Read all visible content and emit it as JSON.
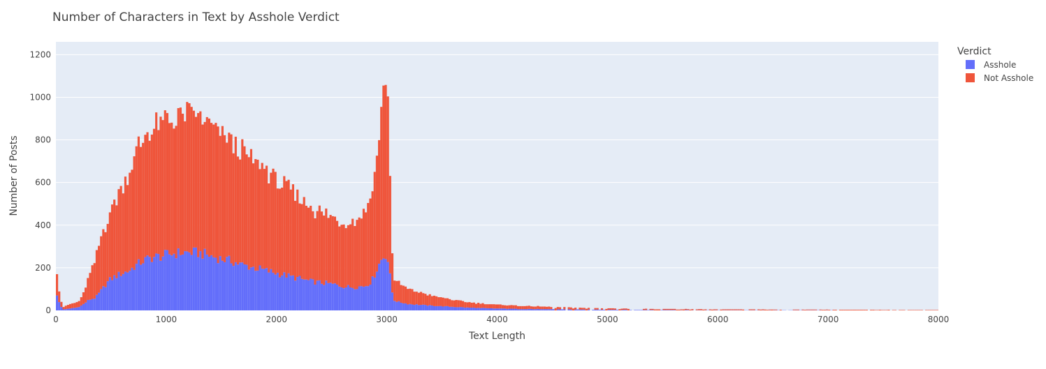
{
  "chart_data": {
    "type": "bar",
    "barmode": "stack",
    "title": "Number of Characters in Text by Asshole Verdict",
    "xlabel": "Text Length",
    "ylabel": "Number of Posts",
    "xlim": [
      0,
      8000
    ],
    "ylim": [
      0,
      1260
    ],
    "x_ticks": [
      0,
      1000,
      2000,
      3000,
      4000,
      5000,
      6000,
      7000,
      8000
    ],
    "x_tick_labels": [
      "0",
      "1000",
      "2000",
      "3000",
      "4000",
      "5000",
      "6000",
      "7000",
      "8000"
    ],
    "y_ticks": [
      0,
      200,
      400,
      600,
      800,
      1000,
      1200
    ],
    "y_tick_labels": [
      "0",
      "200",
      "400",
      "600",
      "800",
      "1000",
      "1200"
    ],
    "grid": true,
    "legend": {
      "title": "Verdict",
      "placement": "top-right"
    },
    "bin_width": 20,
    "series": [
      {
        "name": "Asshole",
        "color": "#636efa",
        "points": [
          [
            0,
            70
          ],
          [
            60,
            5
          ],
          [
            120,
            8
          ],
          [
            200,
            15
          ],
          [
            240,
            25
          ],
          [
            300,
            50
          ],
          [
            360,
            60
          ],
          [
            420,
            100
          ],
          [
            480,
            140
          ],
          [
            540,
            160
          ],
          [
            600,
            175
          ],
          [
            660,
            185
          ],
          [
            720,
            210
          ],
          [
            800,
            235
          ],
          [
            880,
            250
          ],
          [
            960,
            255
          ],
          [
            1040,
            265
          ],
          [
            1120,
            270
          ],
          [
            1200,
            272
          ],
          [
            1280,
            270
          ],
          [
            1360,
            262
          ],
          [
            1440,
            250
          ],
          [
            1520,
            240
          ],
          [
            1600,
            230
          ],
          [
            1680,
            215
          ],
          [
            1760,
            205
          ],
          [
            1840,
            195
          ],
          [
            1920,
            185
          ],
          [
            2000,
            175
          ],
          [
            2080,
            165
          ],
          [
            2160,
            155
          ],
          [
            2240,
            145
          ],
          [
            2320,
            135
          ],
          [
            2400,
            130
          ],
          [
            2480,
            125
          ],
          [
            2560,
            118
          ],
          [
            2640,
            110
          ],
          [
            2720,
            110
          ],
          [
            2800,
            115
          ],
          [
            2860,
            135
          ],
          [
            2900,
            180
          ],
          [
            2940,
            230
          ],
          [
            2980,
            260
          ],
          [
            3000,
            265
          ],
          [
            3020,
            200
          ],
          [
            3040,
            120
          ],
          [
            3060,
            50
          ],
          [
            3100,
            40
          ],
          [
            3200,
            30
          ],
          [
            3300,
            26
          ],
          [
            3400,
            22
          ],
          [
            3500,
            20
          ],
          [
            3600,
            17
          ],
          [
            3700,
            14
          ],
          [
            3800,
            12
          ],
          [
            3900,
            10
          ],
          [
            4000,
            9
          ],
          [
            4200,
            7
          ],
          [
            4400,
            6
          ],
          [
            4600,
            5
          ],
          [
            4800,
            4
          ],
          [
            5000,
            3
          ],
          [
            5400,
            2
          ],
          [
            6000,
            1
          ],
          [
            7000,
            0.5
          ],
          [
            8000,
            0
          ]
        ]
      },
      {
        "name": "Not Asshole",
        "color": "#ef553b",
        "points": [
          [
            0,
            100
          ],
          [
            60,
            10
          ],
          [
            120,
            20
          ],
          [
            200,
            25
          ],
          [
            240,
            40
          ],
          [
            300,
            110
          ],
          [
            360,
            180
          ],
          [
            420,
            260
          ],
          [
            480,
            300
          ],
          [
            540,
            360
          ],
          [
            600,
            410
          ],
          [
            660,
            460
          ],
          [
            720,
            520
          ],
          [
            800,
            580
          ],
          [
            880,
            600
          ],
          [
            960,
            620
          ],
          [
            1040,
            630
          ],
          [
            1120,
            640
          ],
          [
            1200,
            650
          ],
          [
            1280,
            640
          ],
          [
            1360,
            620
          ],
          [
            1440,
            600
          ],
          [
            1520,
            580
          ],
          [
            1600,
            560
          ],
          [
            1680,
            530
          ],
          [
            1760,
            510
          ],
          [
            1840,
            490
          ],
          [
            1920,
            465
          ],
          [
            2000,
            440
          ],
          [
            2080,
            415
          ],
          [
            2160,
            390
          ],
          [
            2240,
            365
          ],
          [
            2320,
            345
          ],
          [
            2400,
            330
          ],
          [
            2480,
            315
          ],
          [
            2560,
            305
          ],
          [
            2640,
            305
          ],
          [
            2720,
            320
          ],
          [
            2800,
            350
          ],
          [
            2860,
            420
          ],
          [
            2900,
            500
          ],
          [
            2940,
            650
          ],
          [
            2980,
            810
          ],
          [
            3000,
            940
          ],
          [
            3020,
            600
          ],
          [
            3040,
            290
          ],
          [
            3060,
            100
          ],
          [
            3100,
            90
          ],
          [
            3200,
            70
          ],
          [
            3300,
            58
          ],
          [
            3400,
            48
          ],
          [
            3500,
            40
          ],
          [
            3600,
            33
          ],
          [
            3700,
            27
          ],
          [
            3800,
            23
          ],
          [
            3900,
            20
          ],
          [
            4000,
            18
          ],
          [
            4200,
            15
          ],
          [
            4400,
            12
          ],
          [
            4600,
            10
          ],
          [
            4800,
            8
          ],
          [
            5000,
            7
          ],
          [
            5400,
            5
          ],
          [
            6000,
            4
          ],
          [
            7000,
            3
          ],
          [
            8000,
            2
          ]
        ]
      }
    ]
  }
}
